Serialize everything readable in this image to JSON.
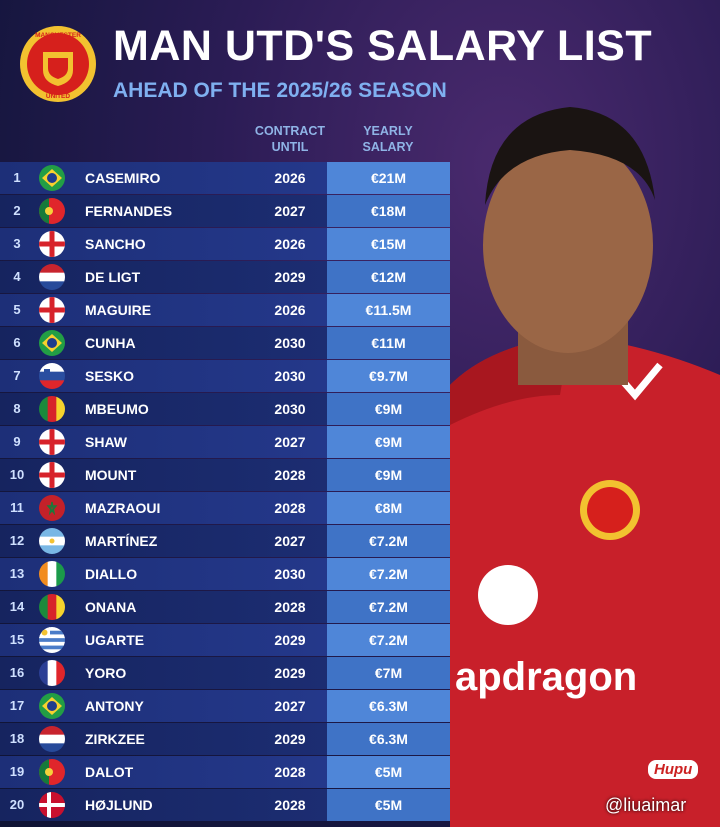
{
  "header": {
    "title": "MAN UTD'S SALARY LIST",
    "subtitle": "AHEAD OF THE 2025/26 SEASON",
    "crest_top": "MANCHESTER",
    "crest_bottom": "UNITED"
  },
  "table": {
    "columns": [
      [
        "CONTRACT",
        "UNTIL"
      ],
      [
        "YEARLY",
        "SALARY"
      ]
    ],
    "rows": [
      [
        "1",
        "CASEMIRO",
        "2026",
        "€21M"
      ],
      [
        "2",
        "FERNANDES",
        "2027",
        "€18M"
      ],
      [
        "3",
        "SANCHO",
        "2026",
        "€15M"
      ],
      [
        "4",
        "DE LIGT",
        "2029",
        "€12M"
      ],
      [
        "5",
        "MAGUIRE",
        "2026",
        "€11.5M"
      ],
      [
        "6",
        "CUNHA",
        "2030",
        "€11M"
      ],
      [
        "7",
        "SESKO",
        "2030",
        "€9.7M"
      ],
      [
        "8",
        "MBEUMO",
        "2030",
        "€9M"
      ],
      [
        "9",
        "SHAW",
        "2027",
        "€9M"
      ],
      [
        "10",
        "MOUNT",
        "2028",
        "€9M"
      ],
      [
        "11",
        "MAZRAOUI",
        "2028",
        "€8M"
      ],
      [
        "12",
        "MARTÍNEZ",
        "2027",
        "€7.2M"
      ],
      [
        "13",
        "DIALLO",
        "2030",
        "€7.2M"
      ],
      [
        "14",
        "ONANA",
        "2028",
        "€7.2M"
      ],
      [
        "15",
        "UGARTE",
        "2029",
        "€7.2M"
      ],
      [
        "16",
        "YORO",
        "2029",
        "€7M"
      ],
      [
        "17",
        "ANTONY",
        "2027",
        "€6.3M"
      ],
      [
        "18",
        "ZIRKZEE",
        "2029",
        "€6.3M"
      ],
      [
        "19",
        "DALOT",
        "2028",
        "€5M"
      ],
      [
        "20",
        "HØJLUND",
        "2028",
        "€5M"
      ]
    ]
  },
  "photo": {
    "shirt_text": "apdragon"
  },
  "footer": {
    "logo": "Hupu",
    "handle": "@liuaimar"
  }
}
